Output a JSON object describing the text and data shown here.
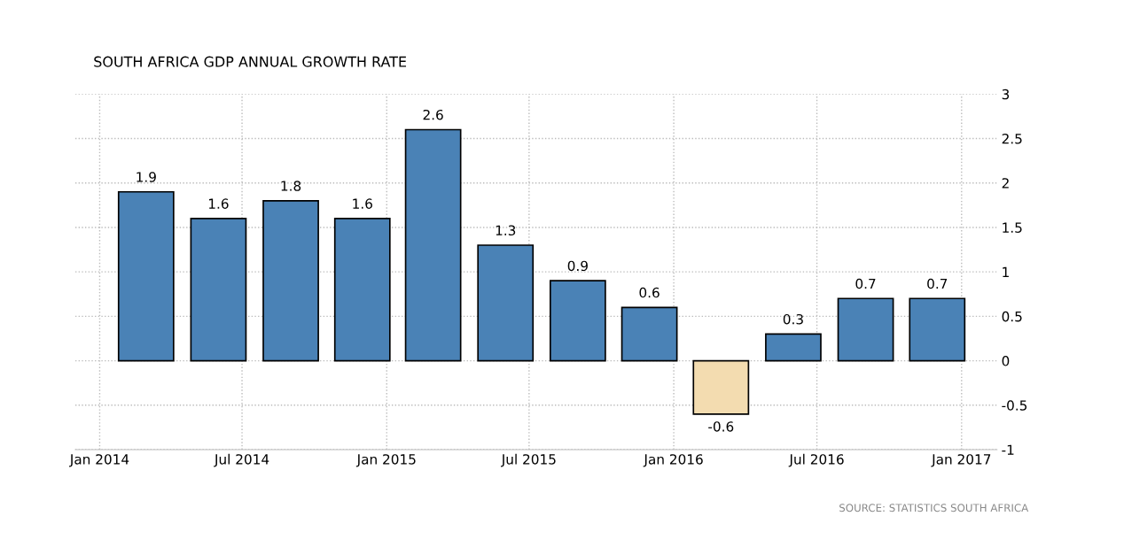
{
  "chart_data": {
    "type": "bar",
    "title": "SOUTH AFRICA GDP ANNUAL GROWTH RATE",
    "x": [
      "2014-03-01",
      "2014-06-01",
      "2014-09-01",
      "2014-12-01",
      "2015-03-01",
      "2015-06-01",
      "2015-09-01",
      "2015-12-01",
      "2016-03-01",
      "2016-06-01",
      "2016-09-01",
      "2016-12-01"
    ],
    "values": [
      1.9,
      1.6,
      1.8,
      1.6,
      2.6,
      1.3,
      0.9,
      0.6,
      -0.6,
      0.3,
      0.7,
      0.7
    ],
    "colors": [
      "#4a82b6",
      "#4a82b6",
      "#4a82b6",
      "#4a82b6",
      "#4a82b6",
      "#4a82b6",
      "#4a82b6",
      "#4a82b6",
      "#f3dcb0",
      "#4a82b6",
      "#4a82b6",
      "#4a82b6"
    ],
    "data_labels": true,
    "xlim": [
      "2013-12-01",
      "2017-02-15"
    ],
    "xticks": [
      {
        "value": "2014-01-01",
        "label": "Jan 2014"
      },
      {
        "value": "2014-07-01",
        "label": "Jul 2014"
      },
      {
        "value": "2015-01-01",
        "label": "Jan 2015"
      },
      {
        "value": "2015-07-01",
        "label": "Jul 2015"
      },
      {
        "value": "2016-01-01",
        "label": "Jan 2016"
      },
      {
        "value": "2016-07-01",
        "label": "Jul 2016"
      },
      {
        "value": "2017-01-01",
        "label": "Jan 2017"
      }
    ],
    "ylim": [
      -1,
      3
    ],
    "yticks": [
      {
        "value": -1,
        "label": "-1"
      },
      {
        "value": -0.5,
        "label": "-0.5"
      },
      0,
      0.5,
      1,
      1.5,
      2,
      2.5,
      3
    ],
    "grid": true,
    "annotations": [
      "SOURCE: STATISTICS SOUTH AFRICA"
    ]
  }
}
